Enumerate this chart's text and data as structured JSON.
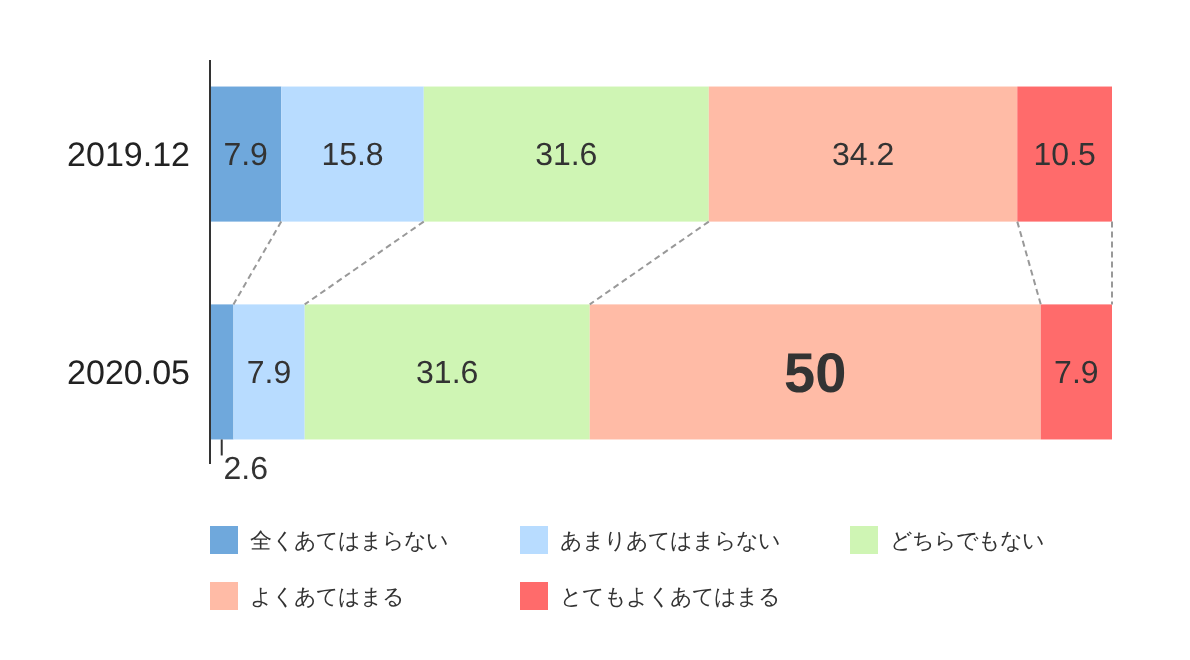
{
  "chart_data": {
    "type": "bar",
    "orientation": "horizontal",
    "stacked": true,
    "categories": [
      "2019.12",
      "2020.05"
    ],
    "xlim": [
      0,
      100
    ],
    "data_labels": true,
    "legend": "bottom",
    "series": [
      {
        "name": "全くあてはまらない",
        "color": "#6fa8dc",
        "values": [
          7.9,
          2.6
        ]
      },
      {
        "name": "あまりあてはまらない",
        "color": "#b8dcff",
        "values": [
          15.8,
          7.9
        ]
      },
      {
        "name": "どちらでもない",
        "color": "#cff5b4",
        "values": [
          31.6,
          31.6
        ]
      },
      {
        "name": "よくあてはまる",
        "color": "#ffbba6",
        "values": [
          34.2,
          50
        ]
      },
      {
        "name": "とてもよくあてはまる",
        "color": "#ff6b6b",
        "values": [
          10.5,
          7.9
        ]
      }
    ]
  }
}
